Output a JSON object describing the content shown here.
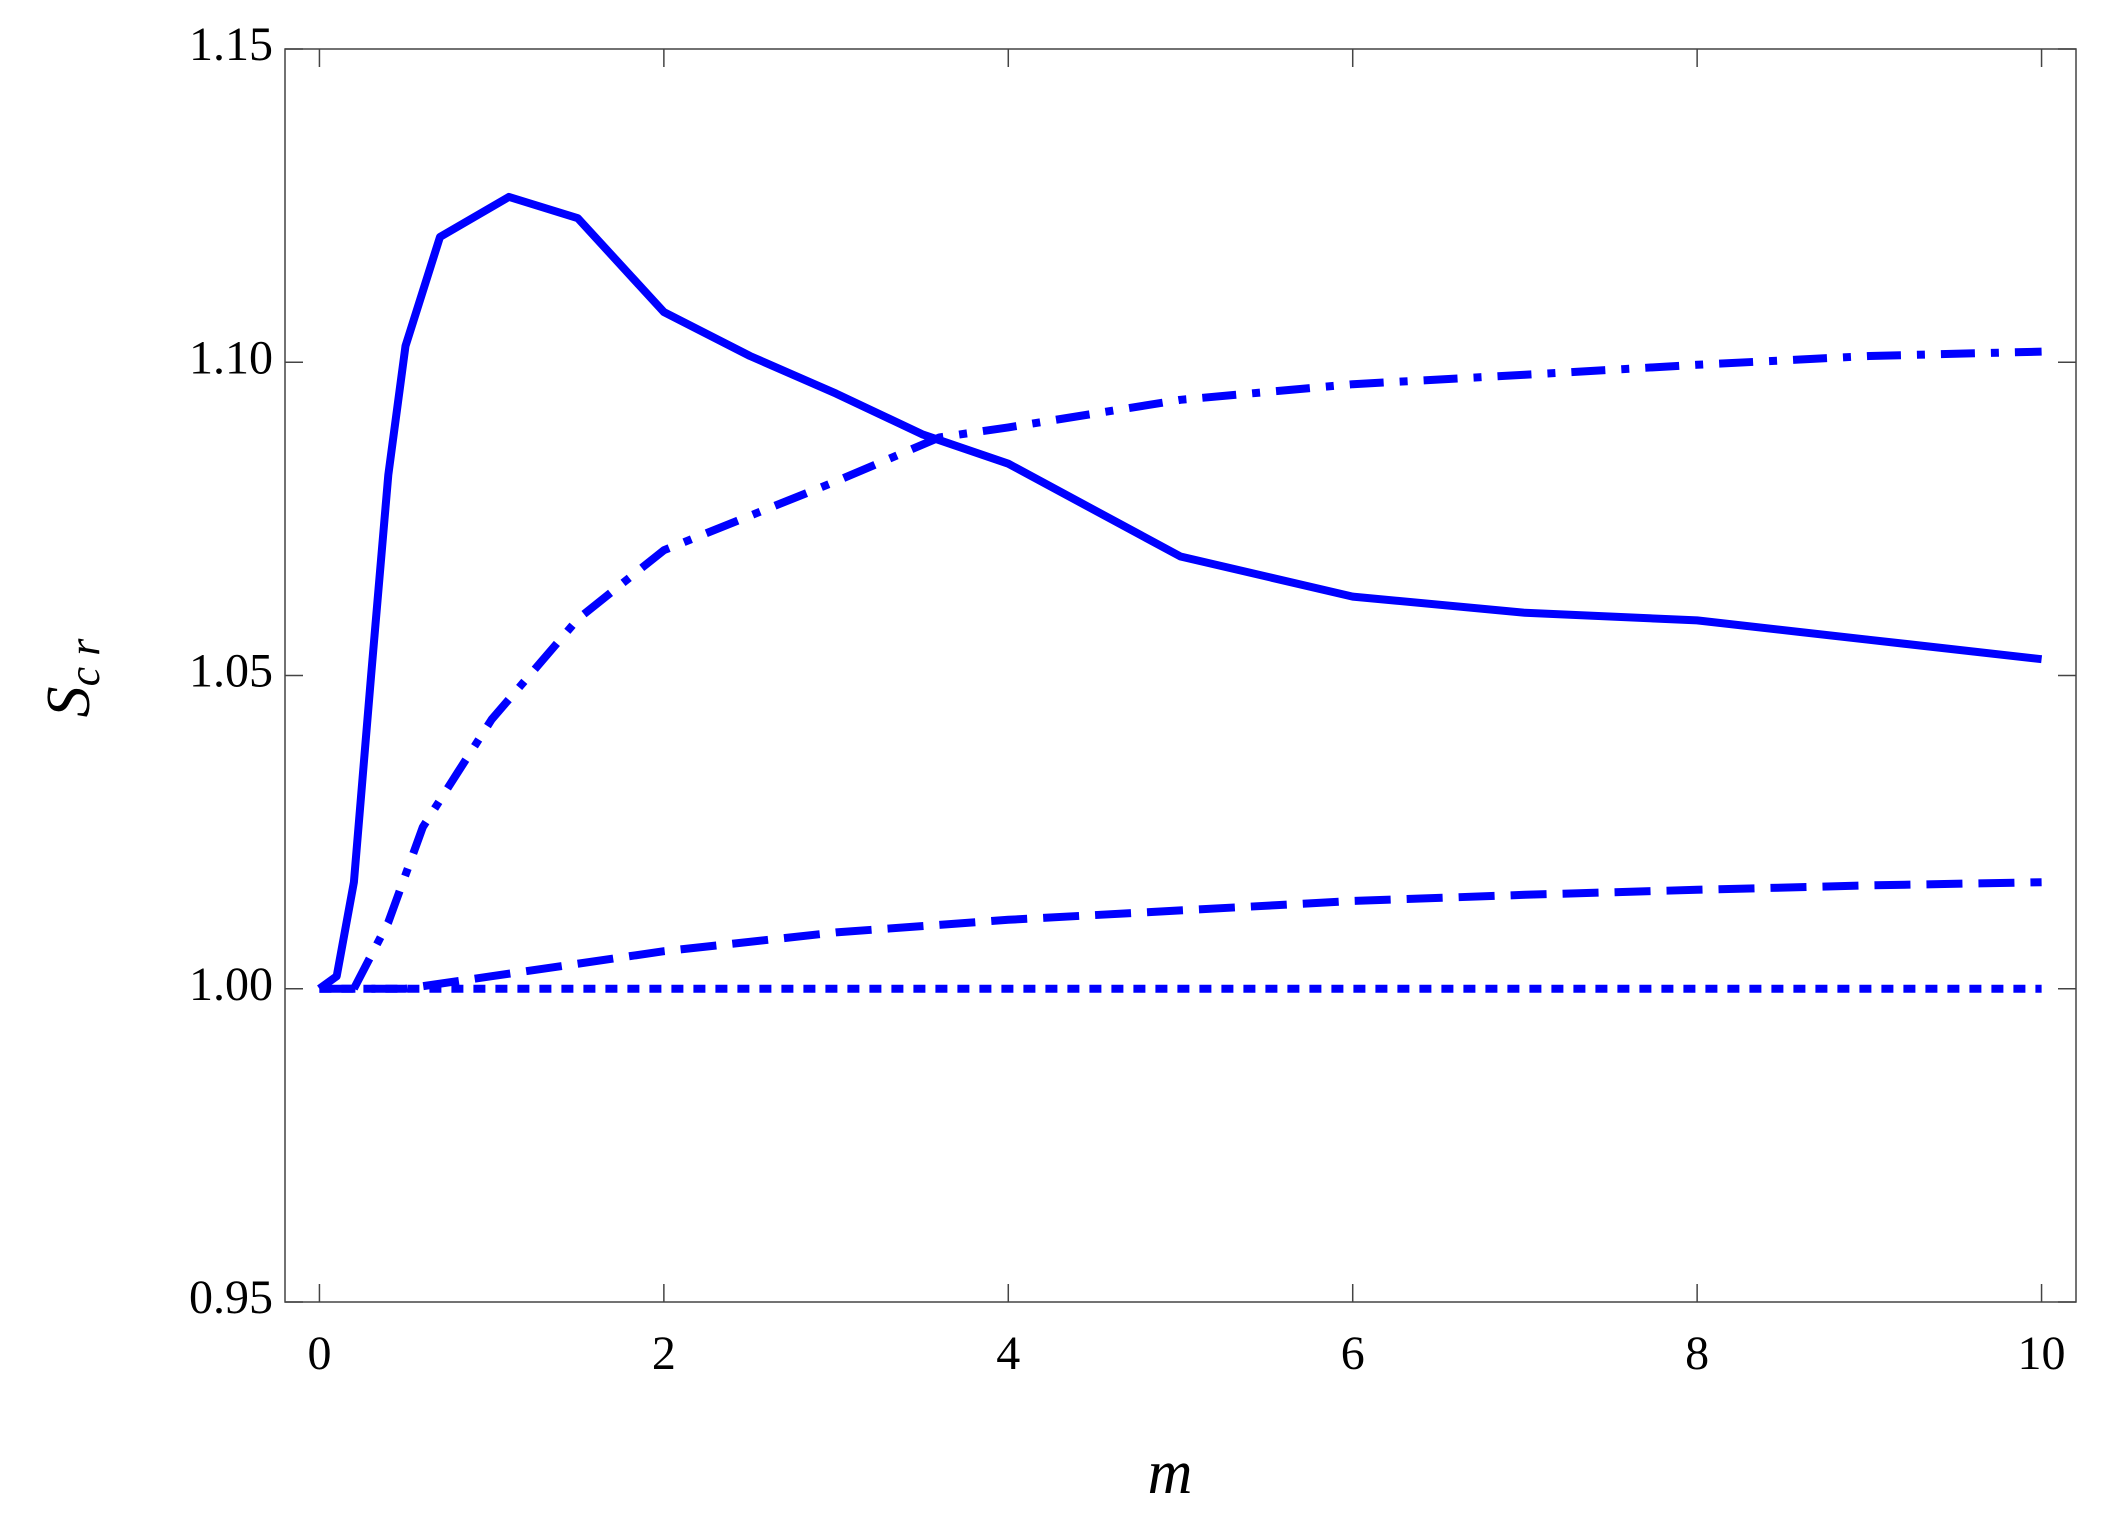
{
  "chart_data": {
    "type": "line",
    "xlabel": "m",
    "ylabel": {
      "main": "S",
      "sub": "c r"
    },
    "xlim": [
      -0.2,
      10.2
    ],
    "ylim": [
      0.95,
      1.15
    ],
    "xticks": [
      0,
      2,
      4,
      6,
      8,
      10
    ],
    "yticks": [
      0.95,
      {
        "value": 1.0,
        "label": "1.00"
      },
      1.05,
      {
        "value": 1.1,
        "label": "1.10"
      },
      1.15
    ],
    "series": [
      {
        "color": "#0000ff",
        "dash": "solid",
        "x": [
          0,
          0.1,
          0.2,
          0.3,
          0.4,
          0.5,
          0.7,
          1.1,
          1.5,
          2,
          2.5,
          3,
          3.5,
          4,
          5,
          6,
          7,
          8,
          9,
          10
        ],
        "values": [
          1.0,
          1.002,
          1.017,
          1.05,
          1.082,
          1.1026,
          1.12,
          1.1264,
          1.123,
          1.108,
          1.101,
          1.095,
          1.0885,
          1.0838,
          1.069,
          1.0626,
          1.06,
          1.0588,
          1.0557,
          1.0526
        ]
      },
      {
        "color": "#0000ff",
        "dash": "dashdot",
        "x": [
          0.2,
          0.4,
          0.6,
          0.8,
          1,
          1.5,
          2,
          3,
          3.6,
          4,
          5,
          6,
          7,
          8,
          9,
          10
        ],
        "values": [
          1.0,
          1.0106,
          1.0258,
          1.0344,
          1.043,
          1.059,
          1.07,
          1.081,
          1.088,
          1.0896,
          1.094,
          1.0965,
          1.098,
          1.0996,
          1.101,
          1.1017
        ]
      },
      {
        "color": "#0000ff",
        "dash": "dashed",
        "x": [
          0,
          0.5,
          1,
          2,
          3,
          4,
          5,
          6,
          7,
          8,
          9,
          10
        ],
        "values": [
          1.0,
          1.0,
          1.002,
          1.006,
          1.009,
          1.011,
          1.0125,
          1.014,
          1.015,
          1.0158,
          1.0165,
          1.017
        ]
      },
      {
        "color": "#0000ff",
        "dash": "dotted",
        "x": [
          0,
          10
        ],
        "values": [
          1.0,
          1.0
        ]
      }
    ]
  }
}
